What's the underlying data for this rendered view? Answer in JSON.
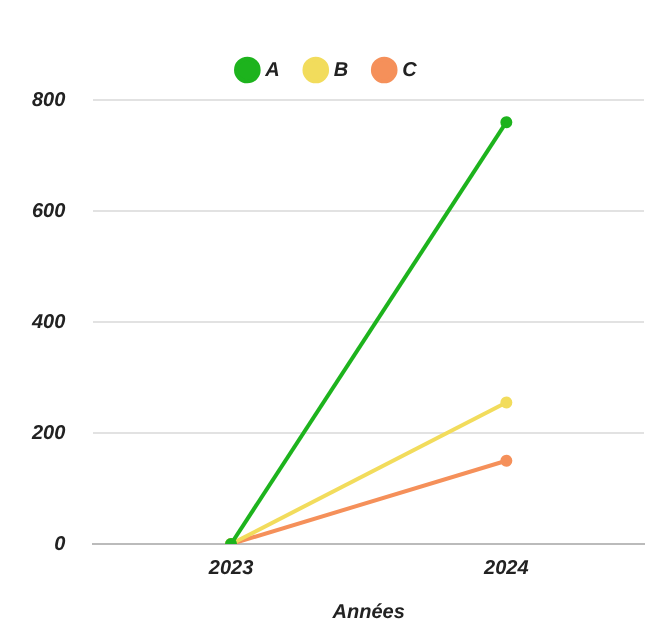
{
  "chart_data": {
    "type": "line",
    "xlabel": "Années",
    "categories": [
      "2023",
      "2024"
    ],
    "series": [
      {
        "name": "A",
        "color": "#1db31d",
        "values": [
          0,
          760
        ]
      },
      {
        "name": "B",
        "color": "#f2dc5c",
        "values": [
          0,
          255
        ]
      },
      {
        "name": "C",
        "color": "#f5905a",
        "values": [
          0,
          150
        ]
      }
    ],
    "ylim": [
      0,
      800
    ],
    "yticks": [
      0,
      200,
      400,
      600,
      800
    ],
    "grid": "y",
    "legend": "top",
    "marker": "circle"
  }
}
